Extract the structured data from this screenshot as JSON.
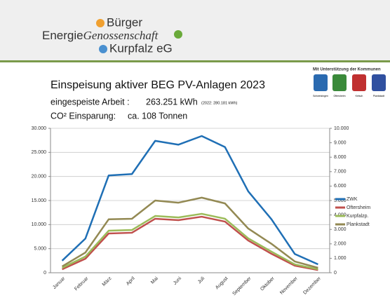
{
  "header": {
    "logo_top": "Bürger",
    "logo_mid_a": "Energie",
    "logo_mid_b": "Genossenschaft",
    "logo_bottom": "Kurpfalz eG",
    "sponsor": "Mit Unterstützung der Kommunen",
    "towns": [
      "Schwetzingen",
      "Oftersheim",
      "Ketsch",
      "Plankstadt"
    ]
  },
  "info": {
    "work_label": "eingespeiste Arbeit :",
    "work_value": "263.251 kWh",
    "work_prev": "(2022: 280.181 kWh)",
    "co2_label": "CO² Einsparung:",
    "co2_value": "ca. 108 Tonnen"
  },
  "chart_data": {
    "type": "line",
    "title": "Einspeisung aktiver BEG PV-Anlagen 2023",
    "categories": [
      "Januar",
      "Februar",
      "März",
      "April",
      "Mai",
      "Juni",
      "Juli",
      "August",
      "September",
      "Oktober",
      "November",
      "Dezember"
    ],
    "series": [
      {
        "name": "ZWK",
        "color": "#1f6fb5",
        "axis": "y",
        "values": [
          2500,
          7100,
          20200,
          20500,
          27400,
          26600,
          28400,
          26100,
          16900,
          11100,
          3900,
          1750
        ]
      },
      {
        "name": "Oftersheim",
        "color": "#c0504d",
        "axis": "y2",
        "values": [
          240,
          970,
          2720,
          2770,
          3740,
          3640,
          3880,
          3540,
          2230,
          1310,
          490,
          190
        ]
      },
      {
        "name": "Kurpfalzp.",
        "color": "#9bbb59",
        "axis": "y2",
        "values": [
          340,
          1120,
          2910,
          2960,
          3930,
          3830,
          4080,
          3740,
          2380,
          1460,
          580,
          240
        ]
      },
      {
        "name": "Plankstadt",
        "color": "#938953",
        "axis": "y2",
        "values": [
          440,
          1400,
          3700,
          3740,
          5000,
          4850,
          5200,
          4800,
          3060,
          2000,
          780,
          340
        ]
      }
    ],
    "ylim": [
      0,
      30000
    ],
    "yticks": [
      0,
      {
        "value": 5000,
        "label": "5.000"
      },
      {
        "value": 10000,
        "label": "10.000"
      },
      {
        "value": 15000,
        "label": "15.000"
      },
      {
        "value": 20000,
        "label": "20.000"
      },
      {
        "value": 25000,
        "label": "25.000"
      },
      {
        "value": 30000,
        "label": "30.000"
      }
    ],
    "y2lim": [
      0,
      10000
    ],
    "y2ticks": [
      0,
      {
        "value": 1000,
        "label": "1.000"
      },
      {
        "value": 2000,
        "label": "2.000"
      },
      {
        "value": 3000,
        "label": "3.000"
      },
      {
        "value": 4000,
        "label": "4.000"
      },
      {
        "value": 5000,
        "label": "5.000"
      },
      {
        "value": 6000,
        "label": "6.000"
      },
      {
        "value": 7000,
        "label": "7.000"
      },
      {
        "value": 8000,
        "label": "8.000"
      },
      {
        "value": 9000,
        "label": "9.000"
      },
      {
        "value": 10000,
        "label": "10.000"
      }
    ],
    "grid": true,
    "legend": "right"
  }
}
